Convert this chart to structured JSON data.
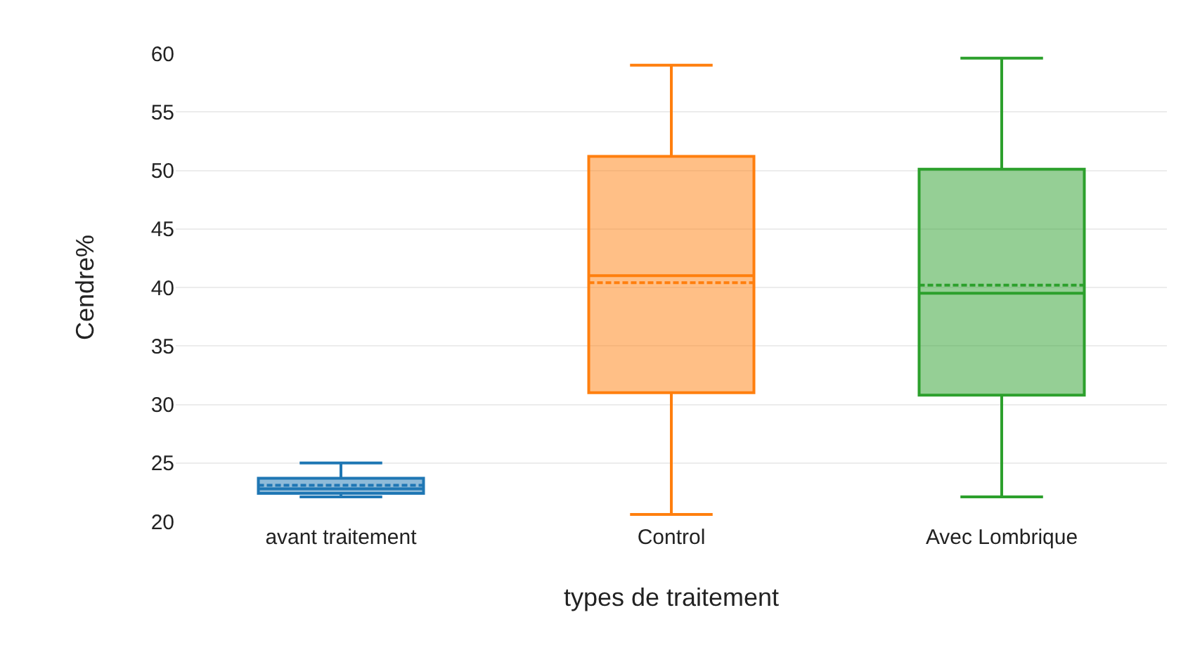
{
  "chart_data": {
    "type": "box",
    "xlabel": "types de traitement",
    "ylabel": "Cendre%",
    "categories": [
      "avant traitement",
      "Control",
      "Avec Lombrique"
    ],
    "colors": [
      "#1f77b4",
      "#ff7f0e",
      "#2ca02c"
    ],
    "boxes": [
      {
        "low": 22.1,
        "q1": 22.4,
        "median": 22.8,
        "q3": 23.7,
        "high": 25.0,
        "mean": 23.1
      },
      {
        "low": 20.6,
        "q1": 31.0,
        "median": 41.0,
        "q3": 51.2,
        "high": 59.0,
        "mean": 40.4
      },
      {
        "low": 22.1,
        "q1": 30.8,
        "median": 39.5,
        "q3": 50.1,
        "high": 59.6,
        "mean": 40.2
      }
    ],
    "ylim": [
      20,
      60
    ],
    "yticks": [
      20,
      25,
      30,
      35,
      40,
      45,
      50,
      55,
      60
    ],
    "grid": "y",
    "legend": false
  }
}
